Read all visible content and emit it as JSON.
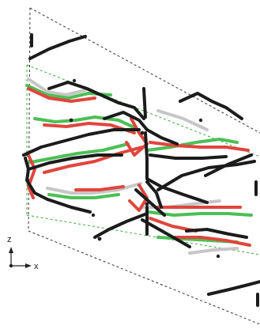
{
  "figure": {
    "kind": "crystal structure overlay",
    "colors": {
      "molecule_a": "#1b1b1b",
      "molecule_b": "#e0453d",
      "molecule_c": "#4cbf56",
      "molecule_d": "#c6c6c6",
      "unit_cell": "#333333",
      "inner_cell": "#3aaa3a",
      "metal_center": "#222222"
    },
    "axes": {
      "vertical": "z",
      "horizontal": "x"
    }
  }
}
